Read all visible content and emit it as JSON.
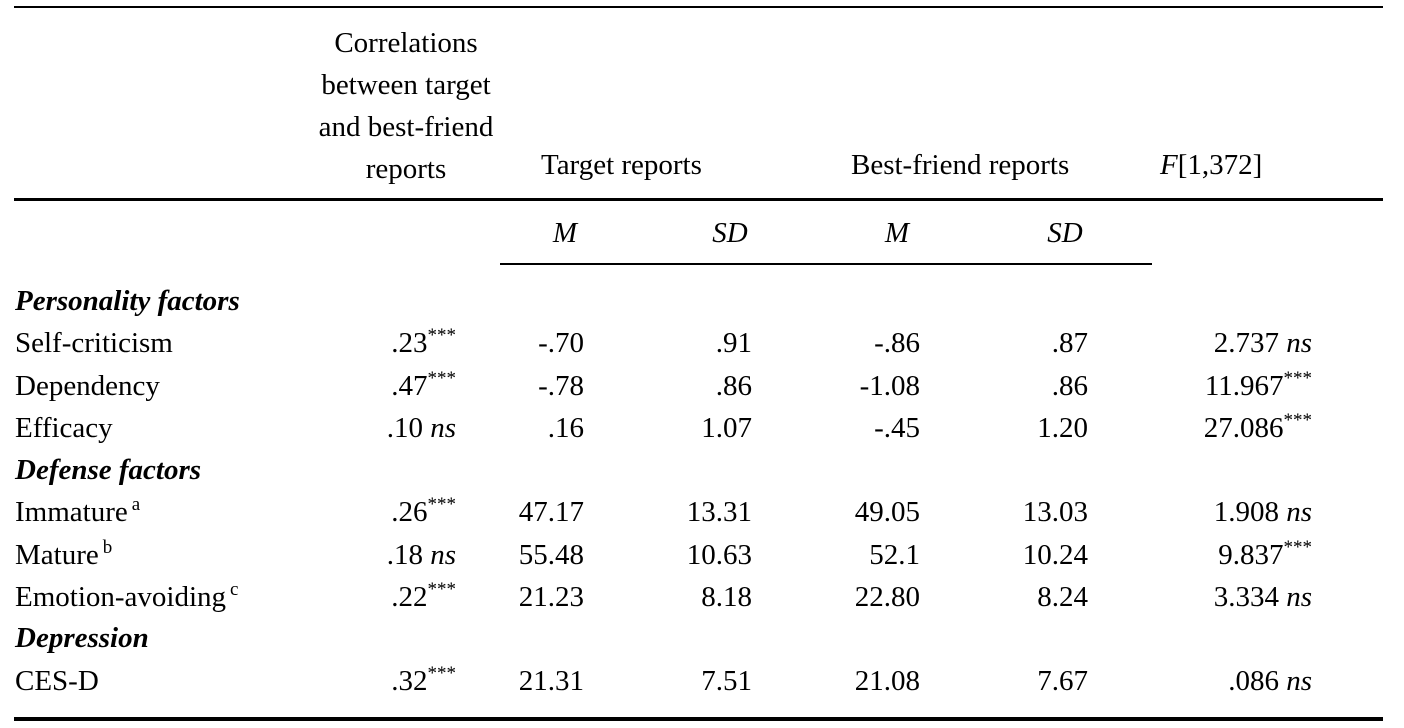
{
  "header": {
    "corr_lines": [
      "Correlations",
      "between target",
      "and best-friend",
      "reports"
    ],
    "target_reports": "Target reports",
    "best_friend_reports": "Best-friend reports",
    "f_label_italic": "F",
    "f_label_rest": "[1,372]"
  },
  "subheader": {
    "target_m": "M",
    "target_sd": "SD",
    "friend_m": "M",
    "friend_sd": "SD"
  },
  "sections": {
    "personality": "Personality factors",
    "defense": "Defense factors",
    "depression": "Depression"
  },
  "rows": [
    {
      "label": "Self-criticism",
      "label_sup": "",
      "corr": ".23",
      "corr_sig": "***",
      "corr_ns": "",
      "tm": "-.70",
      "tsd": ".91",
      "fm": "-.86",
      "fsd": ".87",
      "f": "2.737",
      "f_sig": "",
      "f_ns": "ns"
    },
    {
      "label": "Dependency",
      "label_sup": "",
      "corr": ".47",
      "corr_sig": "***",
      "corr_ns": "",
      "tm": "-.78",
      "tsd": ".86",
      "fm": "-1.08",
      "fsd": ".86",
      "f": "11.967",
      "f_sig": "***",
      "f_ns": ""
    },
    {
      "label": "Efficacy",
      "label_sup": "",
      "corr": ".10",
      "corr_sig": "",
      "corr_ns": "ns",
      "tm": ".16",
      "tsd": "1.07",
      "fm": "-.45",
      "fsd": "1.20",
      "f": "27.086",
      "f_sig": "***",
      "f_ns": ""
    },
    {
      "label": "Immature",
      "label_sup": "a",
      "corr": ".26",
      "corr_sig": "***",
      "corr_ns": "",
      "tm": "47.17",
      "tsd": "13.31",
      "fm": "49.05",
      "fsd": "13.03",
      "f": "1.908",
      "f_sig": "",
      "f_ns": "ns"
    },
    {
      "label": "Mature",
      "label_sup": "b",
      "corr": ".18",
      "corr_sig": "",
      "corr_ns": "ns",
      "tm": "55.48",
      "tsd": "10.63",
      "fm": "52.1",
      "fsd": "10.24",
      "f": "9.837",
      "f_sig": "***",
      "f_ns": ""
    },
    {
      "label": "Emotion-avoiding",
      "label_sup": "c",
      "corr": ".22",
      "corr_sig": "***",
      "corr_ns": "",
      "tm": "21.23",
      "tsd": "8.18",
      "fm": "22.80",
      "fsd": "8.24",
      "f": "3.334",
      "f_sig": "",
      "f_ns": "ns"
    },
    {
      "label": "CES-D",
      "label_sup": "",
      "corr": ".32",
      "corr_sig": "***",
      "corr_ns": "",
      "tm": "21.31",
      "tsd": "7.51",
      "fm": "21.08",
      "fsd": "7.67",
      "f": ".086",
      "f_sig": "",
      "f_ns": "ns"
    }
  ]
}
